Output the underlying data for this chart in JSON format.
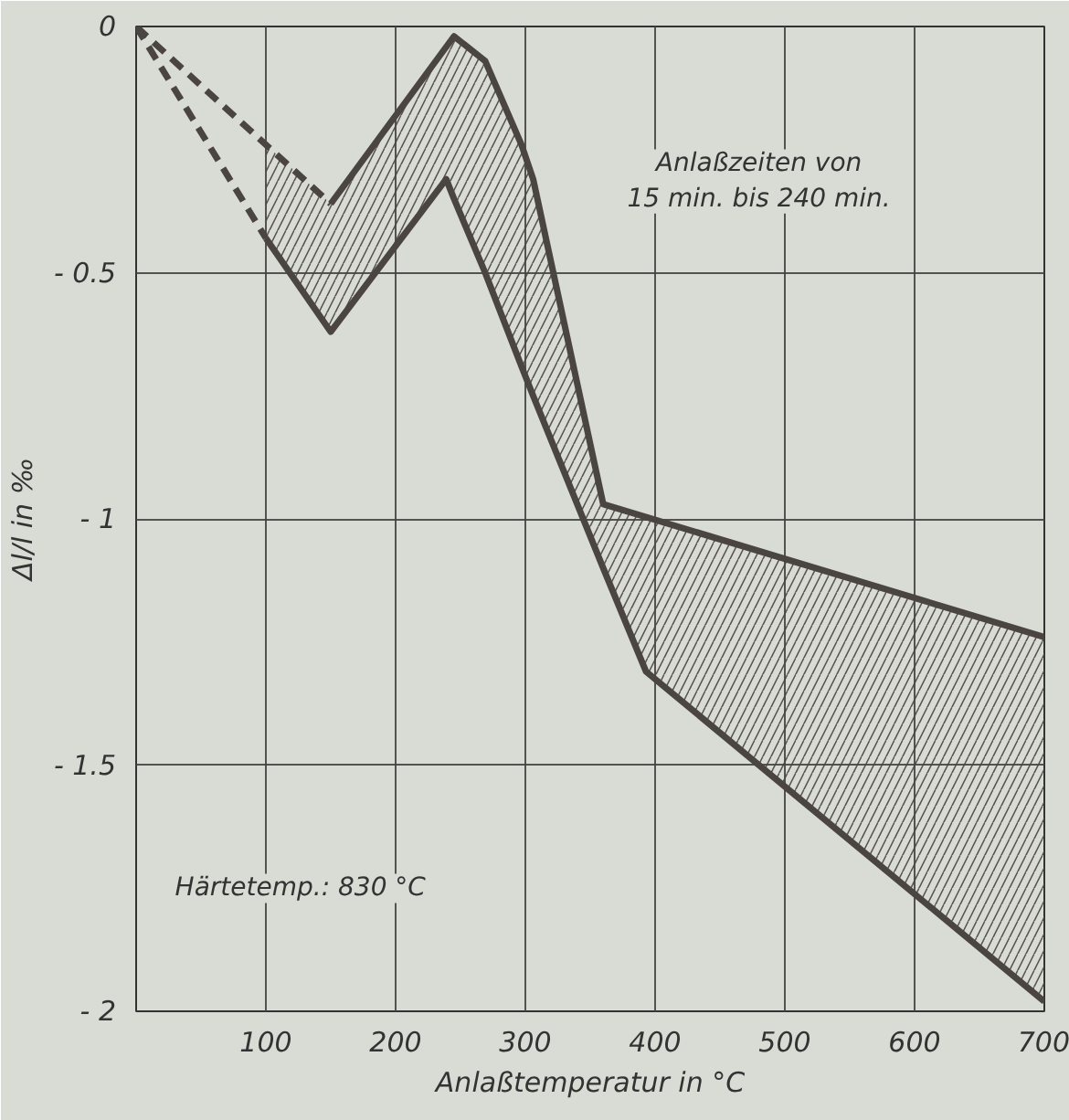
{
  "chart_data": {
    "type": "line",
    "xlabel": "Anlaßtemperatur in °C",
    "ylabel": "Δl/l in ‰",
    "xlim": [
      0,
      700
    ],
    "ylim": [
      -2,
      0
    ],
    "xticks": [
      100,
      200,
      300,
      400,
      500,
      600,
      700
    ],
    "yticks": [
      {
        "value": 0,
        "label": "0"
      },
      {
        "value": -0.5,
        "label": "- 0.5"
      },
      {
        "value": -1,
        "label": "- 1"
      },
      {
        "value": -1.5,
        "label": "- 1.5"
      },
      {
        "value": -2,
        "label": "- 2"
      }
    ],
    "grid": true,
    "marker": "none",
    "series": [
      {
        "color": "#4a4541",
        "line_style": "dashed",
        "x": [
          0,
          150
        ],
        "values": [
          0,
          -0.36
        ]
      },
      {
        "color": "#4a4541",
        "line_style": "dashed",
        "x": [
          0,
          100
        ],
        "values": [
          0,
          -0.43
        ]
      },
      {
        "color": "#4a4541",
        "line_style": "solid",
        "x": [
          150,
          245,
          269,
          297,
          306,
          360,
          700
        ],
        "values": [
          -0.36,
          -0.02,
          -0.07,
          -0.24,
          -0.31,
          -0.97,
          -1.24
        ]
      },
      {
        "color": "#4a4541",
        "line_style": "solid",
        "x": [
          100,
          150,
          239,
          245,
          269,
          297,
          306,
          360,
          393,
          700
        ],
        "values": [
          -0.43,
          -0.62,
          -0.31,
          -0.35,
          -0.5,
          -0.69,
          -0.75,
          -1.1,
          -1.31,
          -1.98
        ],
        "lower": [
          -0.43,
          -0.62,
          -0.31,
          -0.35,
          -0.5,
          -0.69,
          -0.75,
          -1.1,
          -1.31,
          -1.98
        ],
        "upper": [
          -0.24,
          -0.36,
          -0.04,
          -0.02,
          -0.07,
          -0.24,
          -0.31,
          -0.97,
          -1.0,
          -1.24
        ]
      }
    ],
    "annotations": [
      "Anlaßzeiten von\n15 min. bis 240 min.",
      "Härtetemp.: 830 °C"
    ]
  }
}
